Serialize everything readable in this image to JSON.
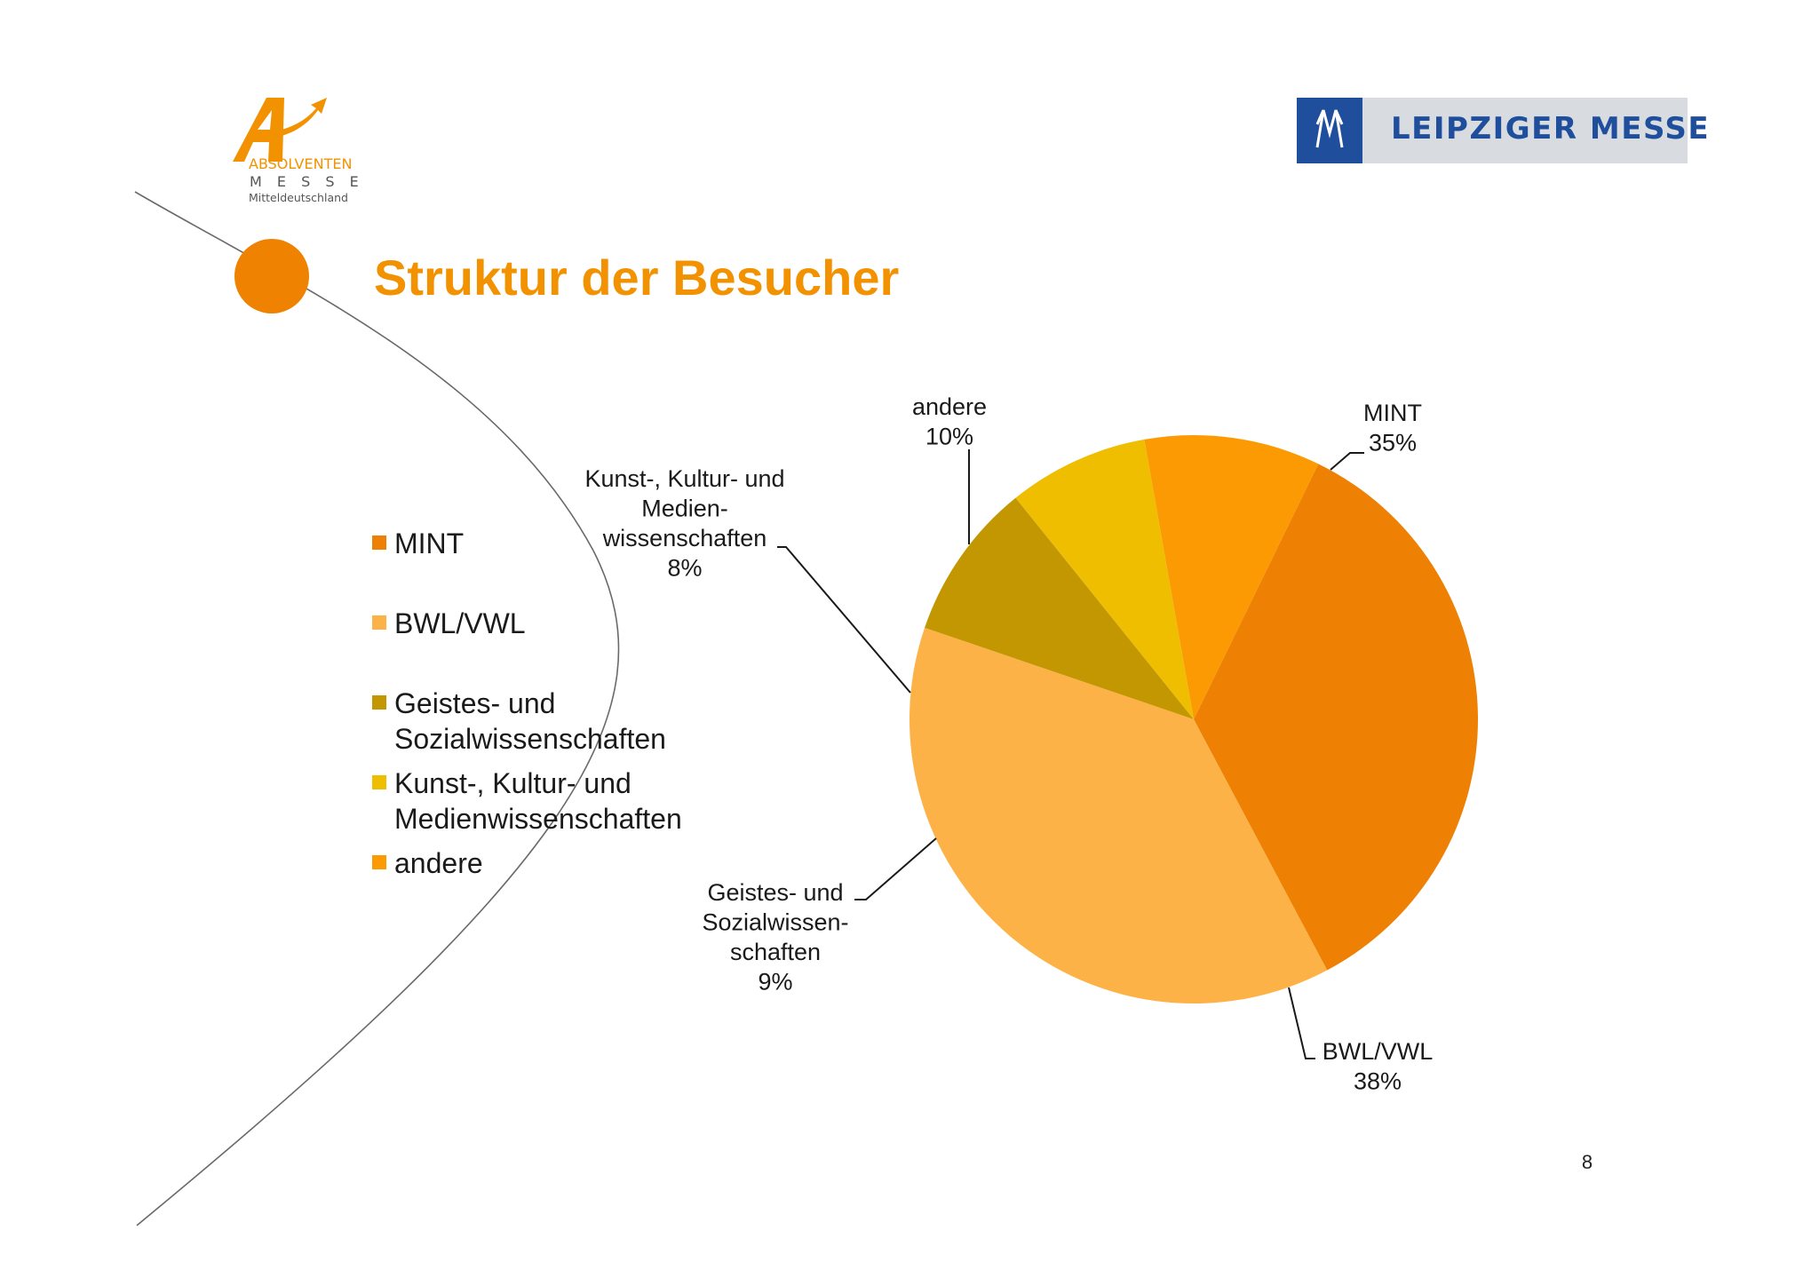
{
  "slide": {
    "title": "Struktur der Besucher",
    "page_number": "8"
  },
  "logo_left": {
    "line1": "ABSOLVENTEN",
    "line2": "M E S S E",
    "line3": "Mitteldeutschland"
  },
  "logo_right": {
    "text": "LEIPZIGER MESSE",
    "mark_color": "#1f4e9c"
  },
  "colors": {
    "accent_orange": "#f29100",
    "title_orange": "#f39200"
  },
  "chart_data": {
    "type": "pie",
    "title": "",
    "legend_position": "left",
    "series": [
      {
        "slices": [
          {
            "key": "mint",
            "legend": "MINT",
            "label_lines": [
              "MINT",
              "35%"
            ],
            "value": 35,
            "color": "#ee8003"
          },
          {
            "key": "bwl",
            "legend": "BWL/VWL",
            "label_lines": [
              "BWL/VWL",
              "38%"
            ],
            "value": 38,
            "color": "#fdb247"
          },
          {
            "key": "geistes",
            "legend": "Geistes- und Sozialwissenschaften",
            "label_lines": [
              "Geistes- und",
              "Sozialwissen-",
              "schaften",
              "9%"
            ],
            "value": 9,
            "color": "#c39702"
          },
          {
            "key": "kunst",
            "legend": "Kunst-, Kultur- und Medienwissenschaften",
            "label_lines": [
              "Kunst-, Kultur- und",
              "Medien-",
              "wissenschaften",
              "8%"
            ],
            "value": 8,
            "color": "#f0be00"
          },
          {
            "key": "andere",
            "legend": "andere",
            "label_lines": [
              "andere",
              "10%"
            ],
            "value": 10,
            "color": "#fc9a04"
          }
        ]
      }
    ]
  }
}
